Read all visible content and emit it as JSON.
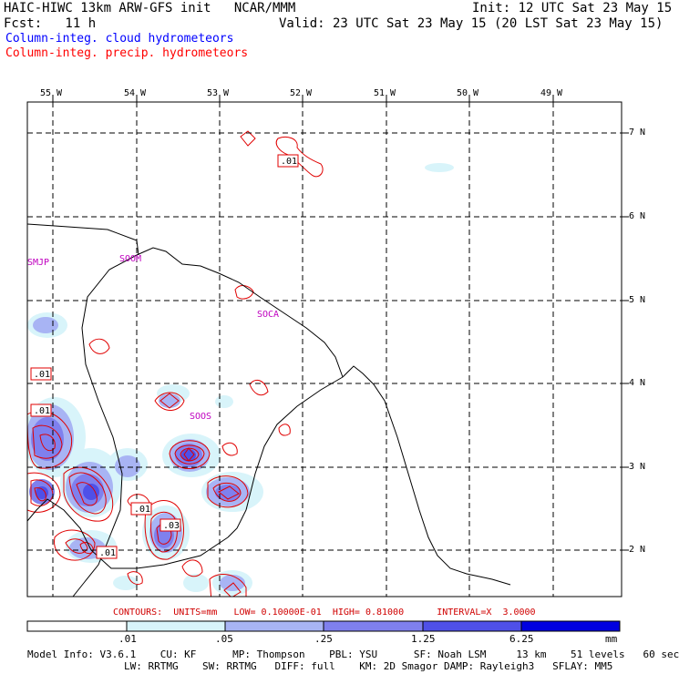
{
  "header": {
    "title_left": "HAIC-HIWC 13km ARW-GFS init   NCAR/MMM",
    "init": "Init: 12 UTC Sat 23 May 15",
    "fcst": "Fcst:   11 h",
    "valid": "Valid: 23 UTC Sat 23 May 15 (20 LST Sat 23 May 15)",
    "legend_cloud": "Column-integ. cloud hydrometeors",
    "legend_precip": "Column-integ. precip. hydrometeors"
  },
  "colors": {
    "cloud_legend": "#0000ff",
    "precip_legend": "#ff0000",
    "precip_contour": "#e00000",
    "site_labels": "#c000c0",
    "shade_1": "#d8f4fa",
    "shade_2": "#a8b4f4",
    "shade_3": "#7f80ee",
    "shade_4": "#4f50e8",
    "shade_5": "#0000e0"
  },
  "axes": {
    "lon_labels": [
      "55 W",
      "54 W",
      "53 W",
      "52 W",
      "51 W",
      "50 W",
      "49 W"
    ],
    "lat_labels": [
      "7 N",
      "6 N",
      "5 N",
      "4 N",
      "3 N",
      "2 N"
    ]
  },
  "sites": [
    "SMJP",
    "SOOM",
    "SOCA",
    "SOOS"
  ],
  "contour_labels": [
    ".01",
    ".01",
    ".01",
    ".01",
    ".03",
    ".01"
  ],
  "contours_info": "CONTOURS:  UNITS=mm   LOW= 0.10000E-01  HIGH= 0.81000      INTERVAL=X  3.0000",
  "colorbar": {
    "labels": [
      ".01",
      ".05",
      ".25",
      "1.25",
      "6.25",
      "mm"
    ]
  },
  "footer": {
    "line1": "Model Info: V3.6.1    CU: KF      MP: Thompson    PBL: YSU      SF: Noah LSM     13 km    51 levels   60 sec",
    "line2": "                LW: RRTMG    SW: RRTMG   DIFF: full    KM: 2D Smagor DAMP: Rayleigh3   SFLAY: MM5"
  }
}
